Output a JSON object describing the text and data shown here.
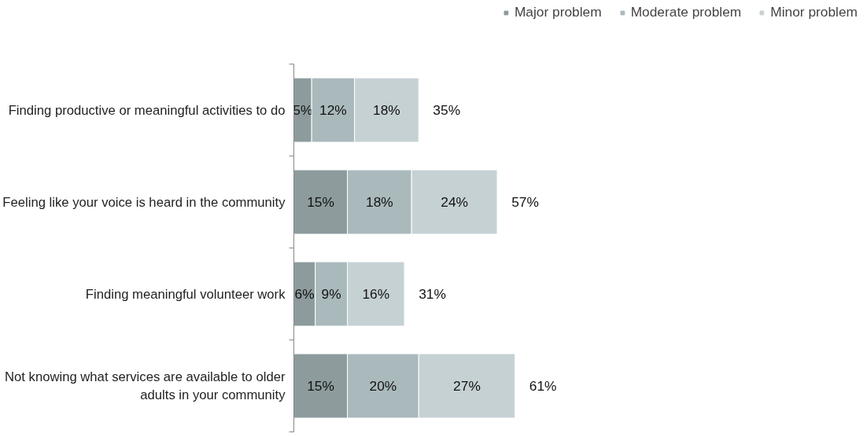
{
  "chart_data": {
    "type": "bar",
    "orientation": "horizontal",
    "stacked": true,
    "legend": "top right",
    "tick_labels": "y",
    "marker": "square",
    "categories": [
      "Finding productive or meaningful activities to do",
      "Feeling like your voice is heard in the community",
      "Finding meaningful volunteer work",
      "Not knowing what services are available to older adults in your community"
    ],
    "series": [
      {
        "name": "Major problem",
        "color": "#8d9b9d",
        "values": [
          5,
          15,
          6,
          15
        ],
        "value_labels": [
          "5%",
          "15%",
          "6%",
          "15%"
        ]
      },
      {
        "name": "Moderate problem",
        "color": "#aab9bc",
        "values": [
          12,
          18,
          9,
          20
        ],
        "value_labels": [
          "12%",
          "18%",
          "9%",
          "20%"
        ]
      },
      {
        "name": "Minor problem",
        "color": "#c6d1d4",
        "values": [
          18,
          24,
          16,
          27
        ],
        "value_labels": [
          "18%",
          "24%",
          "16%",
          "27%"
        ]
      }
    ],
    "totals": [
      "35%",
      "57%",
      "31%",
      "61%"
    ]
  }
}
